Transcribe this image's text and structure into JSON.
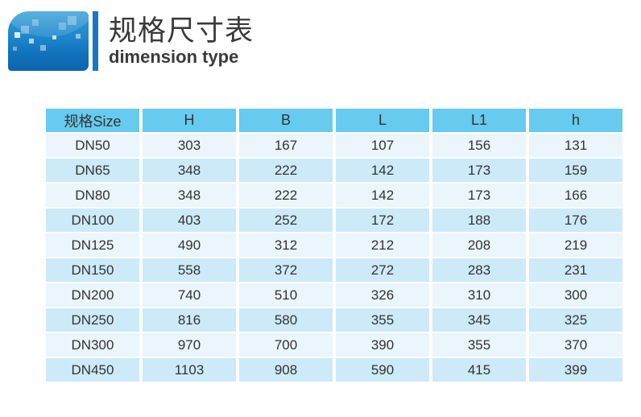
{
  "header": {
    "title_cn": "规格尺寸表",
    "title_en": "dimension type"
  },
  "table": {
    "columns": [
      "规格Size",
      "H",
      "B",
      "L",
      "L1",
      "h"
    ],
    "rows": [
      [
        "DN50",
        "303",
        "167",
        "107",
        "156",
        "131"
      ],
      [
        "DN65",
        "348",
        "222",
        "142",
        "173",
        "159"
      ],
      [
        "DN80",
        "348",
        "222",
        "142",
        "173",
        "166"
      ],
      [
        "DN100",
        "403",
        "252",
        "172",
        "188",
        "176"
      ],
      [
        "DN125",
        "490",
        "312",
        "212",
        "208",
        "219"
      ],
      [
        "DN150",
        "558",
        "372",
        "272",
        "283",
        "231"
      ],
      [
        "DN200",
        "740",
        "510",
        "326",
        "310",
        "300"
      ],
      [
        "DN250",
        "816",
        "580",
        "355",
        "345",
        "325"
      ],
      [
        "DN300",
        "970",
        "700",
        "390",
        "355",
        "370"
      ],
      [
        "DN450",
        "1103",
        "908",
        "590",
        "415",
        "399"
      ]
    ]
  },
  "colors": {
    "header_bg": "#66cbee",
    "row_light": "#eaf5fc",
    "row_dark": "#cdeaf8",
    "accent_bar": "#1d74c0",
    "logo_top": "#2f9bd6",
    "logo_bottom": "#0d65ad",
    "text": "#333333"
  }
}
